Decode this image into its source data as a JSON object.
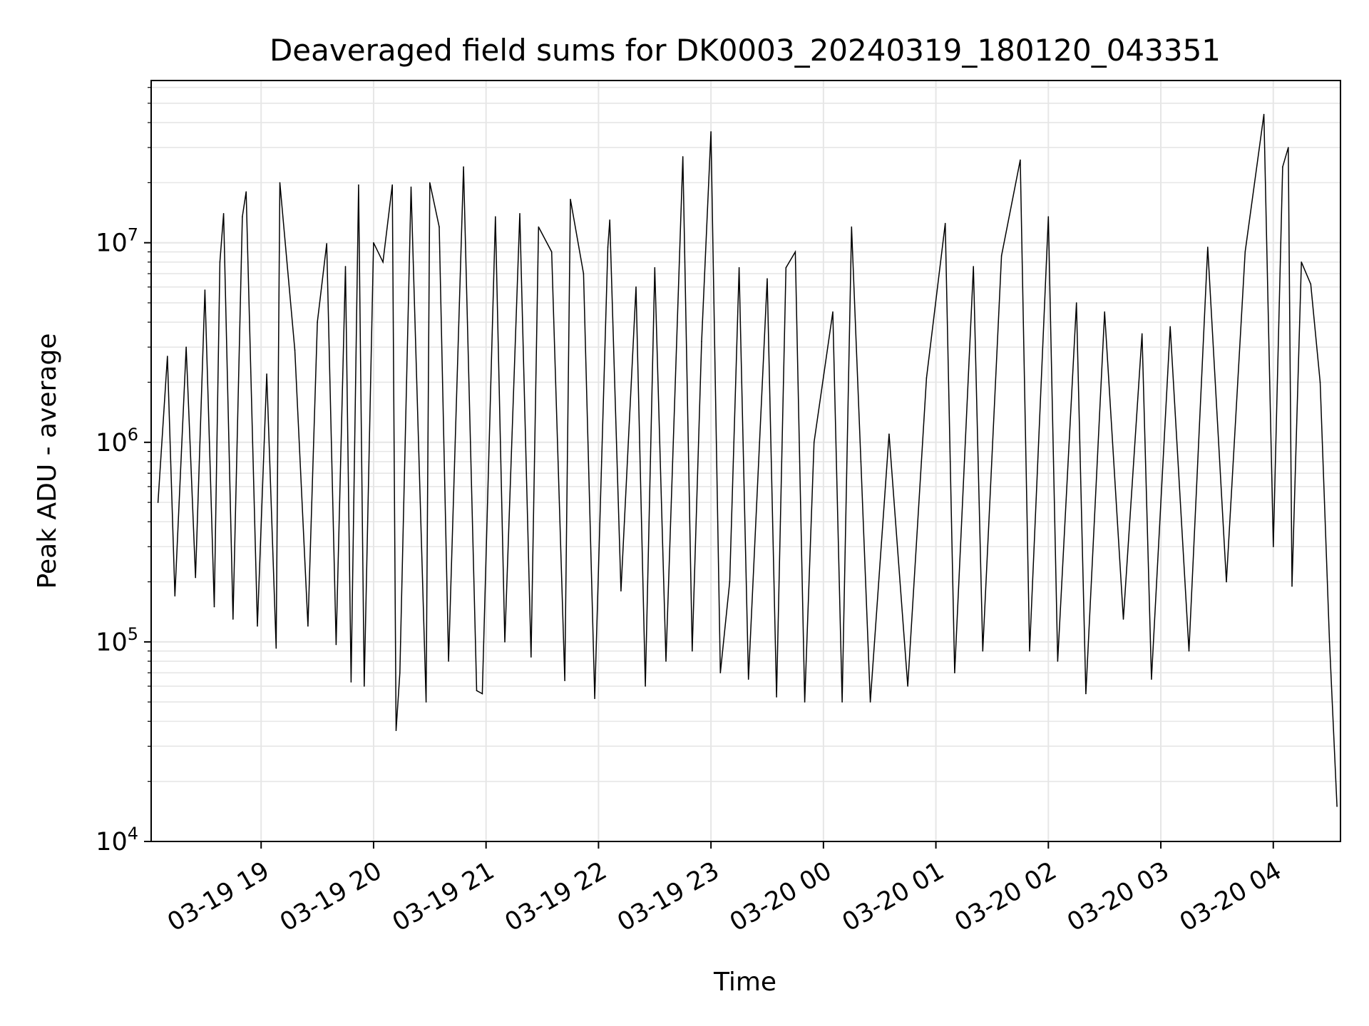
{
  "chart_data": {
    "type": "line",
    "title": "Deaveraged field sums for DK0003_20240319_180120_043351",
    "xlabel": "Time",
    "ylabel": "Peak ADU - average",
    "yscale": "log",
    "ylim": [
      10000,
      65000000
    ],
    "xlim": [
      "2024-03-19T18:01:20",
      "2024-03-20T04:35:51"
    ],
    "grid": true,
    "legend": "none",
    "line_color": "#000000",
    "x_ticks": [
      {
        "label": "03-19 19",
        "value": "2024-03-19T19:00:00"
      },
      {
        "label": "03-19 20",
        "value": "2024-03-19T20:00:00"
      },
      {
        "label": "03-19 21",
        "value": "2024-03-19T21:00:00"
      },
      {
        "label": "03-19 22",
        "value": "2024-03-19T22:00:00"
      },
      {
        "label": "03-19 23",
        "value": "2024-03-19T23:00:00"
      },
      {
        "label": "03-20 00",
        "value": "2024-03-20T00:00:00"
      },
      {
        "label": "03-20 01",
        "value": "2024-03-20T01:00:00"
      },
      {
        "label": "03-20 02",
        "value": "2024-03-20T02:00:00"
      },
      {
        "label": "03-20 03",
        "value": "2024-03-20T03:00:00"
      },
      {
        "label": "03-20 04",
        "value": "2024-03-20T04:00:00"
      }
    ],
    "y_ticks": [
      {
        "base": "10",
        "exp": "4",
        "value": 10000
      },
      {
        "base": "10",
        "exp": "5",
        "value": 100000
      },
      {
        "base": "10",
        "exp": "6",
        "value": 1000000
      },
      {
        "base": "10",
        "exp": "7",
        "value": 10000000
      }
    ],
    "series": [
      {
        "points": [
          [
            "2024-03-19T18:05:00",
            500000
          ],
          [
            "2024-03-19T18:10:00",
            2700000
          ],
          [
            "2024-03-19T18:14:00",
            170000
          ],
          [
            "2024-03-19T18:20:00",
            3000000
          ],
          [
            "2024-03-19T18:25:00",
            210000
          ],
          [
            "2024-03-19T18:30:00",
            5800000
          ],
          [
            "2024-03-19T18:35:00",
            150000
          ],
          [
            "2024-03-19T18:38:00",
            8000000
          ],
          [
            "2024-03-19T18:40:00",
            14000000
          ],
          [
            "2024-03-19T18:45:00",
            130000
          ],
          [
            "2024-03-19T18:50:00",
            13500000
          ],
          [
            "2024-03-19T18:52:00",
            18000000
          ],
          [
            "2024-03-19T18:58:00",
            120000
          ],
          [
            "2024-03-19T19:03:00",
            2200000
          ],
          [
            "2024-03-19T19:08:00",
            93000
          ],
          [
            "2024-03-19T19:10:00",
            20000000
          ],
          [
            "2024-03-19T19:18:00",
            2900000
          ],
          [
            "2024-03-19T19:25:00",
            120000
          ],
          [
            "2024-03-19T19:30:00",
            4000000
          ],
          [
            "2024-03-19T19:35:00",
            9900000
          ],
          [
            "2024-03-19T19:40:00",
            97000
          ],
          [
            "2024-03-19T19:45:00",
            7600000
          ],
          [
            "2024-03-19T19:48:00",
            63000
          ],
          [
            "2024-03-19T19:52:00",
            19500000
          ],
          [
            "2024-03-19T19:55:00",
            60000
          ],
          [
            "2024-03-19T20:00:00",
            10000000
          ],
          [
            "2024-03-19T20:05:00",
            8000000
          ],
          [
            "2024-03-19T20:10:00",
            19500000
          ],
          [
            "2024-03-19T20:12:00",
            36000
          ],
          [
            "2024-03-19T20:14:00",
            70000
          ],
          [
            "2024-03-19T20:20:00",
            19000000
          ],
          [
            "2024-03-19T20:28:00",
            50000
          ],
          [
            "2024-03-19T20:30:00",
            20000000
          ],
          [
            "2024-03-19T20:35:00",
            12000000
          ],
          [
            "2024-03-19T20:40:00",
            80000
          ],
          [
            "2024-03-19T20:48:00",
            24000000
          ],
          [
            "2024-03-19T20:55:00",
            57000
          ],
          [
            "2024-03-19T20:58:00",
            55000
          ],
          [
            "2024-03-19T21:05:00",
            13500000
          ],
          [
            "2024-03-19T21:10:00",
            100000
          ],
          [
            "2024-03-19T21:18:00",
            14000000
          ],
          [
            "2024-03-19T21:24:00",
            84000
          ],
          [
            "2024-03-19T21:28:00",
            12000000
          ],
          [
            "2024-03-19T21:35:00",
            9000000
          ],
          [
            "2024-03-19T21:42:00",
            64000
          ],
          [
            "2024-03-19T21:45:00",
            16500000
          ],
          [
            "2024-03-19T21:52:00",
            7000000
          ],
          [
            "2024-03-19T21:58:00",
            52000
          ],
          [
            "2024-03-19T22:05:00",
            9500000
          ],
          [
            "2024-03-19T22:06:00",
            13000000
          ],
          [
            "2024-03-19T22:12:00",
            180000
          ],
          [
            "2024-03-19T22:20:00",
            6000000
          ],
          [
            "2024-03-19T22:25:00",
            60000
          ],
          [
            "2024-03-19T22:30:00",
            7500000
          ],
          [
            "2024-03-19T22:36:00",
            80000
          ],
          [
            "2024-03-19T22:45:00",
            27000000
          ],
          [
            "2024-03-19T22:50:00",
            90000
          ],
          [
            "2024-03-19T22:55:00",
            3200000
          ],
          [
            "2024-03-19T23:00:00",
            36000000
          ],
          [
            "2024-03-19T23:05:00",
            70000
          ],
          [
            "2024-03-19T23:10:00",
            200000
          ],
          [
            "2024-03-19T23:15:00",
            7500000
          ],
          [
            "2024-03-19T23:20:00",
            65000
          ],
          [
            "2024-03-19T23:30:00",
            6600000
          ],
          [
            "2024-03-19T23:35:00",
            53000
          ],
          [
            "2024-03-19T23:40:00",
            7500000
          ],
          [
            "2024-03-19T23:45:00",
            9000000
          ],
          [
            "2024-03-19T23:50:00",
            50000
          ],
          [
            "2024-03-19T23:55:00",
            1000000
          ],
          [
            "2024-03-20T00:05:00",
            4500000
          ],
          [
            "2024-03-20T00:10:00",
            50000
          ],
          [
            "2024-03-20T00:15:00",
            12000000
          ],
          [
            "2024-03-20T00:20:00",
            800000
          ],
          [
            "2024-03-20T00:25:00",
            50000
          ],
          [
            "2024-03-20T00:35:00",
            1100000
          ],
          [
            "2024-03-20T00:45:00",
            60000
          ],
          [
            "2024-03-20T00:55:00",
            2100000
          ],
          [
            "2024-03-20T01:05:00",
            12500000
          ],
          [
            "2024-03-20T01:10:00",
            70000
          ],
          [
            "2024-03-20T01:20:00",
            7600000
          ],
          [
            "2024-03-20T01:25:00",
            90000
          ],
          [
            "2024-03-20T01:35:00",
            8600000
          ],
          [
            "2024-03-20T01:45:00",
            26000000
          ],
          [
            "2024-03-20T01:50:00",
            90000
          ],
          [
            "2024-03-20T02:00:00",
            13500000
          ],
          [
            "2024-03-20T02:05:00",
            80000
          ],
          [
            "2024-03-20T02:15:00",
            5000000
          ],
          [
            "2024-03-20T02:20:00",
            55000
          ],
          [
            "2024-03-20T02:30:00",
            4500000
          ],
          [
            "2024-03-20T02:40:00",
            130000
          ],
          [
            "2024-03-20T02:50:00",
            3500000
          ],
          [
            "2024-03-20T02:55:00",
            65000
          ],
          [
            "2024-03-20T03:05:00",
            3800000
          ],
          [
            "2024-03-20T03:15:00",
            90000
          ],
          [
            "2024-03-20T03:25:00",
            9500000
          ],
          [
            "2024-03-20T03:35:00",
            200000
          ],
          [
            "2024-03-20T03:45:00",
            9000000
          ],
          [
            "2024-03-20T03:55:00",
            44000000
          ],
          [
            "2024-03-20T04:00:00",
            300000
          ],
          [
            "2024-03-20T04:05:00",
            24000000
          ],
          [
            "2024-03-20T04:08:00",
            30000000
          ],
          [
            "2024-03-20T04:10:00",
            190000
          ],
          [
            "2024-03-20T04:15:00",
            8000000
          ],
          [
            "2024-03-20T04:20:00",
            6200000
          ],
          [
            "2024-03-20T04:25:00",
            2000000
          ],
          [
            "2024-03-20T04:30:00",
            100000
          ],
          [
            "2024-03-20T04:34:00",
            15000
          ]
        ]
      }
    ]
  }
}
